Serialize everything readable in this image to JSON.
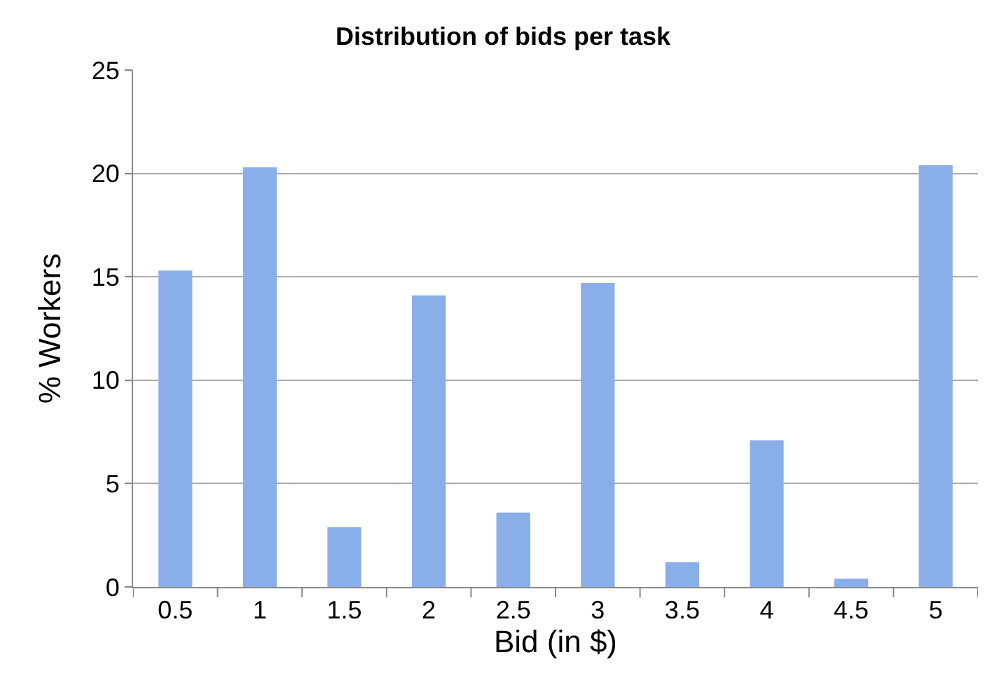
{
  "chart_data": {
    "type": "bar",
    "title": "Distribution of bids per task",
    "xlabel": "Bid (in $)",
    "ylabel": "% Workers",
    "categories": [
      "0.5",
      "1",
      "1.5",
      "2",
      "2.5",
      "3",
      "3.5",
      "4",
      "4.5",
      "5"
    ],
    "values": [
      15.3,
      20.3,
      2.9,
      14.1,
      3.6,
      14.7,
      1.2,
      7.1,
      0.4,
      20.4
    ],
    "color": "#8aaee8",
    "ylim": [
      0,
      25
    ],
    "yticks": [
      0,
      5,
      10,
      15,
      20,
      25
    ],
    "grid": "y"
  }
}
